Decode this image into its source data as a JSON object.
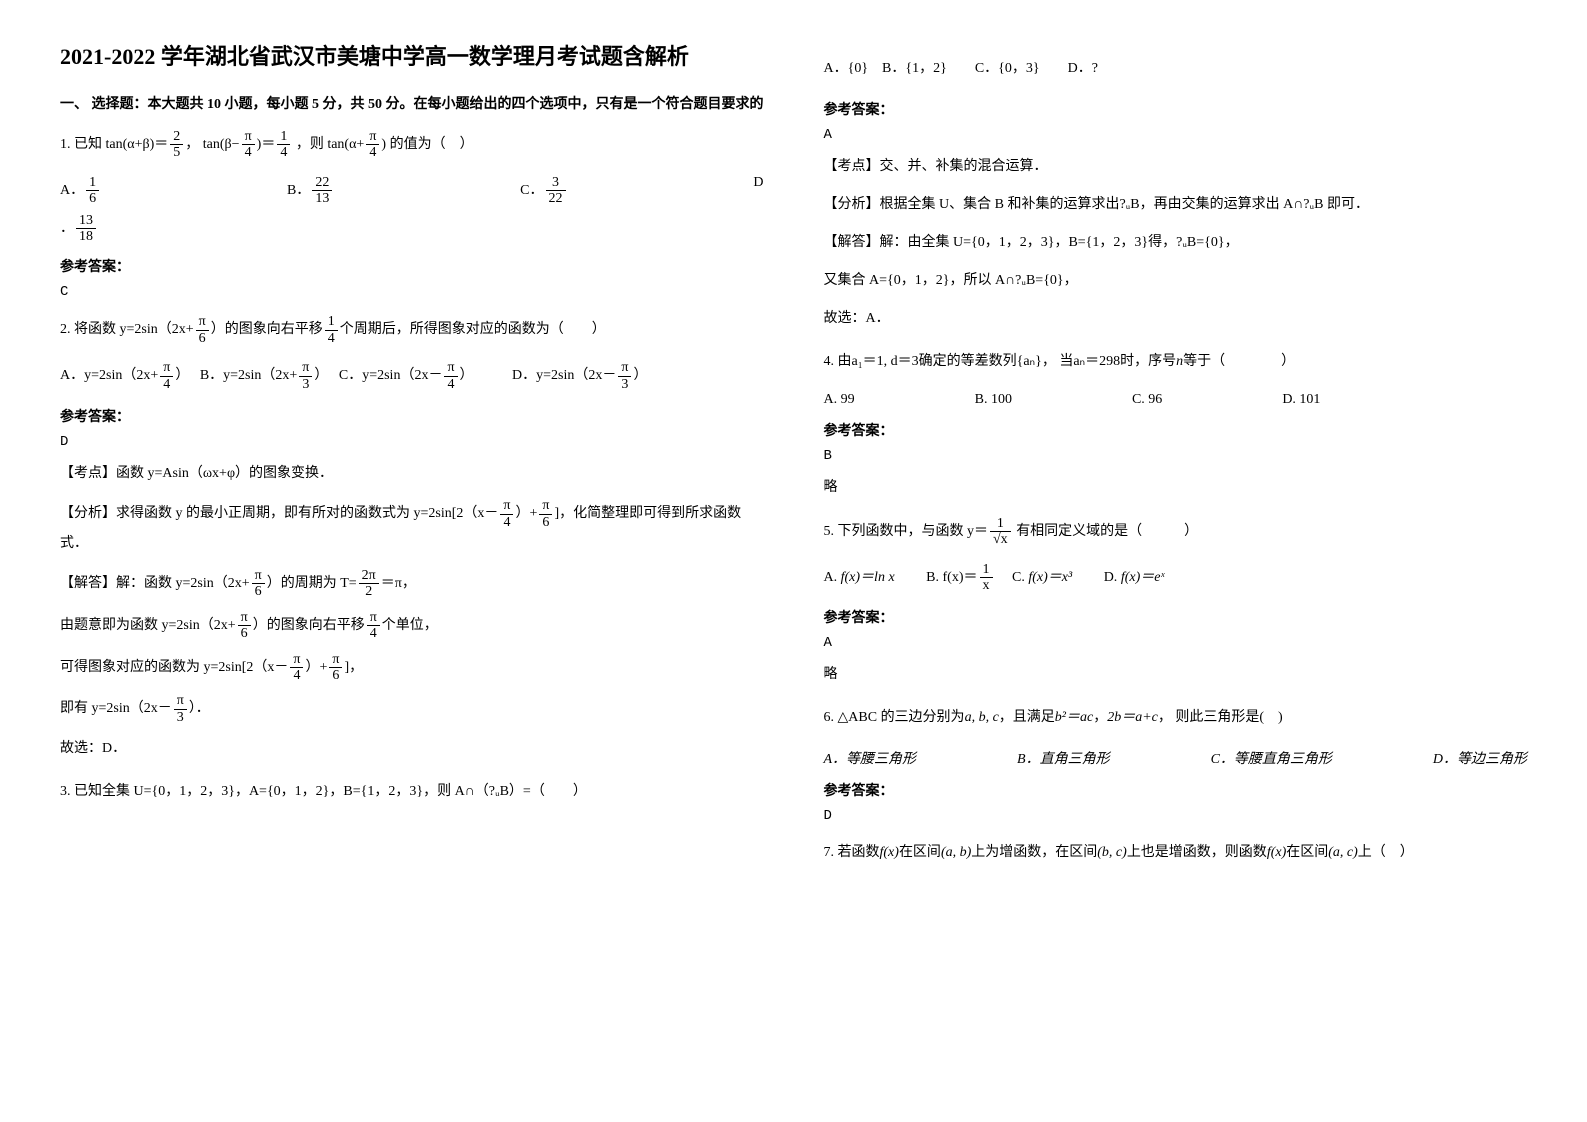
{
  "title": "2021-2022 学年湖北省武汉市美塘中学高一数学理月考试题含解析",
  "section1": "一、 选择题：本大题共 10 小题，每小题 5 分，共 50 分。在每小题给出的四个选项中，只有是一个符合题目要求的",
  "q1": {
    "stem_prefix": "1. 已知",
    "expr1_a": "tan(α+β)",
    "expr1_eq": "＝",
    "expr2_a": "tan(β−",
    "expr2_b": ")＝",
    "stem_mid": "，则",
    "expr3": "tan(α+",
    "stem_suffix": "的值为（　）",
    "optA": "A．",
    "optB": "B．",
    "optC": "C．",
    "optD": "D",
    "dot": "．",
    "fA_n": "1",
    "fA_d": "6",
    "fB_n": "22",
    "fB_d": "13",
    "fC_n": "3",
    "fC_d": "22",
    "fD_n": "13",
    "fD_d": "18",
    "f1_n": "2",
    "f1_d": "5",
    "f2_n": "π",
    "f2_d": "4",
    "f3_n": "1",
    "f3_d": "4",
    "f4_n": "π",
    "f4_d": "4"
  },
  "ans_label": "参考答案：",
  "q1_ans": "C",
  "q2": {
    "stem_a": "2. 将函数 y=2sin（2x+",
    "stem_b": "）的图象向右平移",
    "stem_c": "个周期后，所得图象对应的函数为（　　）",
    "f6n": "π",
    "f6d": "6",
    "f14n": "1",
    "f14d": "4",
    "optA": "A．y=2sin（2x+",
    "optA2": "）",
    "optB": "B．y=2sin（2x+",
    "optB2": "）",
    "optC": "C．y=2sin（2x－",
    "optC2": "）",
    "optD": "D．y=2sin（2x－",
    "optD2": "）",
    "fAn": "π",
    "fAd": "4",
    "fBn": "π",
    "fBd": "3",
    "fCn": "π",
    "fCd": "4",
    "fDn": "π",
    "fDd": "3"
  },
  "q2_ans": "D",
  "q2_point": "【考点】函数 y=Asin（ωx+φ）的图象变换．",
  "q2_analysis_a": "【分析】求得函数 y 的最小正周期，即有所对的函数式为 y=2sin[2（x－",
  "q2_analysis_b": "）+",
  "q2_analysis_c": "]，化简整理即可得到所求函数式．",
  "q2_solve_head": "【解答】解：函数 y=2sin（2x+",
  "q2_solve_a": "）的周期为 T=",
  "q2_solve_a2": "＝π，",
  "q2_Tn": "2π",
  "q2_Td": "2",
  "q2_solve_b": "由题意即为函数 y=2sin（2x+",
  "q2_solve_b2": "）的图象向右平移",
  "q2_solve_b3": "个单位，",
  "q2_solve_c": "可得图象对应的函数为 y=2sin[2（x－",
  "q2_solve_c2": "）+",
  "q2_solve_c3": "]，",
  "q2_solve_d": "即有 y=2sin（2x－",
  "q2_solve_d2": "）．",
  "q2_solve_e": "故选：D．",
  "q3_stem": "3. 已知全集 U={0，1，2，3}，A={0，1，2}，B={1，2，3}，则 A∩（?ᵤB）=（　　）",
  "q3_opts": "A．{0}　B．{1，2}　　C．{0，3}　　D．?",
  "q3_ans": "A",
  "q3_point": "【考点】交、并、补集的混合运算．",
  "q3_analysis": "【分析】根据全集 U、集合 B 和补集的运算求出?ᵤB，再由交集的运算求出 A∩?ᵤB 即可．",
  "q3_solve_a": "【解答】解：由全集 U={0，1，2，3}，B={1，2，3}得，?ᵤB={0}，",
  "q3_solve_b": "又集合 A={0，1，2}，所以 A∩?ᵤB={0}，",
  "q3_solve_c": "故选：A．",
  "q4_a": "4. 由",
  "q4_expr1": "a₁＝1, d＝3",
  "q4_b": "确定的等差数列",
  "q4_expr2": "{aₙ}",
  "q4_c": "， 当",
  "q4_expr3": "aₙ＝298",
  "q4_d": "时，序号",
  "q4_e": "n",
  "q4_f": "等于（　　　　）",
  "q4_optA": "A. 99",
  "q4_optB": "B. 100",
  "q4_optC": "C. 96",
  "q4_optD": "D. 101",
  "q4_ans": "B",
  "q4_note": "略",
  "q5_a": "5. 下列函数中，与函数",
  "q5_b": "有相同定义域的是（　　　）",
  "q5_y": "y＝",
  "q5_yn": "1",
  "q5_yd": "√x",
  "q5_optA": "A.",
  "q5_eA": "f(x)＝ln x",
  "q5_optB": "B.",
  "q5_eBn": "1",
  "q5_eBd": "x",
  "q5_eBpre": "f(x)＝",
  "q5_optC": "C.",
  "q5_eC": "f(x)＝x³",
  "q5_optD": "D.",
  "q5_eD": "f(x)＝eˣ",
  "q5_ans": "A",
  "q5_note": "略",
  "q6_a": "6. ",
  "q6_tri": "△ABC",
  "q6_b": " 的三边分别为",
  "q6_abc": "a, b, c",
  "q6_c": "，且满足",
  "q6_eq": "b²＝ac",
  "q6_comma": "，",
  "q6_eq2": "2b＝a+c",
  "q6_d": "， 则此三角形是(　)",
  "q6_optA": "A．等腰三角形",
  "q6_optB": "B．直角三角形",
  "q6_optC": "C．等腰直角三角形",
  "q6_optD": "D．等边三角形",
  "q6_ans": "D",
  "q7_a": "7. 若函数",
  "q7_fx": "f(x)",
  "q7_b": "在区间",
  "q7_ab": "(a, b)",
  "q7_c": "上为增函数，在区间",
  "q7_bc": "(b, c)",
  "q7_d": "上也是增函数，则函数",
  "q7_e": "在区间",
  "q7_ac": "(a, c)",
  "q7_f": "上（　）"
}
